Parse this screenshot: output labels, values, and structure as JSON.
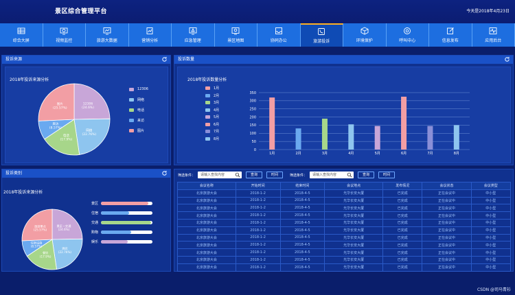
{
  "header": {
    "title": "景区综合管理平台",
    "date": "今天是2018年4月23日"
  },
  "nav": [
    {
      "label": "综合大屏",
      "icon": "grid-icon"
    },
    {
      "label": "视频监控",
      "icon": "eye-icon"
    },
    {
      "label": "旅游大数据",
      "icon": "chart-screen-icon"
    },
    {
      "label": "营销分析",
      "icon": "analysis-icon"
    },
    {
      "label": "应急管理",
      "icon": "alert-screen-icon"
    },
    {
      "label": "景区地图",
      "icon": "map-pin-icon"
    },
    {
      "label": "协同办公",
      "icon": "inbox-icon"
    },
    {
      "label": "旅游投诉",
      "icon": "phone-icon",
      "active": true
    },
    {
      "label": "环境保护",
      "icon": "cube-icon"
    },
    {
      "label": "呼叫中心",
      "icon": "call-center-icon"
    },
    {
      "label": "信息发布",
      "icon": "edit-icon"
    },
    {
      "label": "应用后台",
      "icon": "pulse-icon"
    }
  ],
  "source_panel": {
    "title": "投诉来源",
    "subtitle": "2018年投诉来源分析",
    "legend": [
      {
        "label": "12306",
        "color": "#c8a6d8"
      },
      {
        "label": "网络",
        "color": "#8ec5ef"
      },
      {
        "label": "电话",
        "color": "#a7d68a"
      },
      {
        "label": "来访",
        "color": "#6aa9f0"
      },
      {
        "label": "图片",
        "color": "#f29ea4"
      }
    ],
    "slices": [
      {
        "label": "12306",
        "pct": "(24.6%)",
        "value": 24.6,
        "color": "#c8a6d8"
      },
      {
        "label": "网络",
        "pct": "(22.76%)",
        "value": 22.76,
        "color": "#8ec5ef"
      },
      {
        "label": "电话",
        "pct": "(17.9%)",
        "value": 17.9,
        "color": "#a7d68a"
      },
      {
        "label": "来访",
        "pct": "(8.57%)",
        "value": 8.57,
        "color": "#6aa9f0"
      },
      {
        "label": "图片",
        "pct": "(25.57%)",
        "value": 25.57,
        "color": "#f29ea4"
      }
    ]
  },
  "count_panel": {
    "title": "投诉数量",
    "subtitle": "2018年投诉数量分析"
  },
  "chart_data": {
    "type": "bar",
    "categories": [
      "1月",
      "2月",
      "3月",
      "4月",
      "5月",
      "6月",
      "7月",
      "8月"
    ],
    "values": [
      320,
      130,
      190,
      155,
      145,
      325,
      145,
      150
    ],
    "colors": [
      "#f29ea4",
      "#6aa9f0",
      "#a7d68a",
      "#8ec5ef",
      "#c8a6d8",
      "#f29ea4",
      "#8a8fd8",
      "#8ec5ef"
    ],
    "yticks": [
      "0",
      "50",
      "100",
      "150",
      "200",
      "250",
      "300",
      "350"
    ],
    "ylim": [
      0,
      350
    ]
  },
  "type_panel": {
    "title": "投诉类别",
    "subtitle": "2018年投诉来源分析",
    "slices": [
      {
        "label": "景区—交通",
        "pct": "(24.6%)",
        "value": 24.6,
        "color": "#c8a6d8"
      },
      {
        "label": "酒店",
        "pct": "(22.76%)",
        "value": 22.76,
        "color": "#8ec5ef"
      },
      {
        "label": "餐饮",
        "pct": "(17.9%)",
        "value": 17.9,
        "color": "#a7d68a"
      },
      {
        "label": "住宿设施",
        "pct": "(8.57%)",
        "value": 8.57,
        "color": "#6aa9f0"
      },
      {
        "label": "旅游景点",
        "pct": "(25.57%)",
        "value": 25.57,
        "color": "#f29ea4"
      }
    ],
    "bars": [
      {
        "label": "景区",
        "value": 0.92,
        "color": "#f29ea4"
      },
      {
        "label": "住宿",
        "value": 0.55,
        "color": "#6aa9f0"
      },
      {
        "label": "交通",
        "value": 0.97,
        "color": "#a7d68a"
      },
      {
        "label": "购物",
        "value": 0.58,
        "color": "#6aa9f0"
      },
      {
        "label": "娱乐",
        "value": 0.52,
        "color": "#c8a6d8"
      }
    ]
  },
  "filter": {
    "label1": "筛选条件：",
    "placeholder1": "请输入查找内容",
    "search1": "查询",
    "time1": "时间",
    "label2": "筛选条件：",
    "placeholder2": "请输入查找内容",
    "search2": "查询",
    "time2": "时间"
  },
  "table": {
    "headers": [
      "会议名称",
      "开始时间",
      "结束时间",
      "会议地点",
      "发布情况",
      "会议状态",
      "会议类型"
    ],
    "rows": [
      [
        "北京旅游大会",
        "2018-1-2",
        "2018-4-5",
        "光华长安大厦",
        "已完成",
        "正在会议中",
        "中小型"
      ],
      [
        "北京旅游大会",
        "2018-1-2",
        "2018-4-5",
        "光华长安大厦",
        "已完成",
        "正在会议中",
        "中小型"
      ],
      [
        "北京旅游大会",
        "2018-1-2",
        "2018-4-5",
        "光华长安大厦",
        "已完成",
        "正在会议中",
        "中小型"
      ],
      [
        "北京旅游大会",
        "2018-1-2",
        "2018-4-5",
        "光华长安大厦",
        "已完成",
        "正在会议中",
        "中小型"
      ],
      [
        "北京旅游大会",
        "2018-1-2",
        "2018-4-5",
        "光华长安大厦",
        "已完成",
        "正在会议中",
        "中小型"
      ],
      [
        "北京旅游大会",
        "2018-1-2",
        "2018-4-5",
        "光华长安大厦",
        "已完成",
        "正在会议中",
        "中小型"
      ],
      [
        "北京旅游大会",
        "2018-1-2",
        "2018-4-5",
        "光华长安大厦",
        "已完成",
        "正在会议中",
        "中小型"
      ],
      [
        "北京旅游大会",
        "2018-1-2",
        "2018-4-5",
        "光华长安大厦",
        "已完成",
        "正在会议中",
        "中小型"
      ],
      [
        "北京旅游大会",
        "2018-1-2",
        "2018-4-5",
        "光华长安大厦",
        "已完成",
        "正在会议中",
        "中小型"
      ],
      [
        "北京旅游大会",
        "2018-1-2",
        "2018-4-5",
        "光华长安大厦",
        "已完成",
        "正在会议中",
        "中小型"
      ],
      [
        "北京旅游大会",
        "2018-1-2",
        "2018-4-5",
        "光华长安大厦",
        "已完成",
        "正在会议中",
        "中小型"
      ]
    ]
  },
  "watermark": "CSDN @司马青衫"
}
